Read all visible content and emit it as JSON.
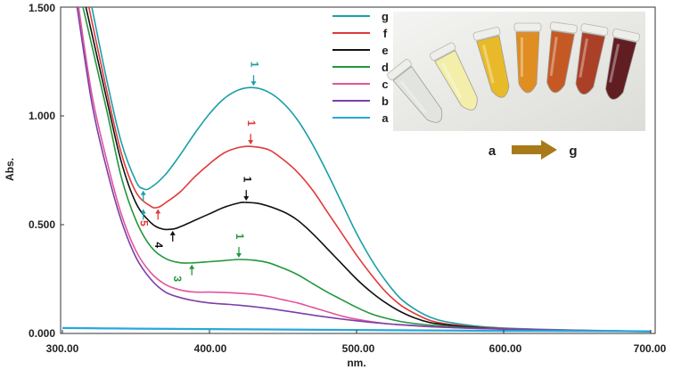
{
  "chart_data": {
    "type": "line",
    "title": "",
    "xlabel": "nm.",
    "ylabel": "Abs.",
    "xlim": [
      300,
      700
    ],
    "ylim": [
      0,
      1.5
    ],
    "x_ticks": [
      "300.00",
      "400.00",
      "500.00",
      "600.00",
      "700.00"
    ],
    "y_ticks": [
      "0.000",
      "0.500",
      "1.000",
      "1.500"
    ],
    "x_tick_values": [
      300,
      400,
      500,
      600,
      700
    ],
    "y_tick_values": [
      0,
      0.5,
      1.0,
      1.5
    ],
    "series": [
      {
        "name": "g",
        "color": "#1a9fa8",
        "points": [
          [
            320,
            1.5
          ],
          [
            330,
            1.17
          ],
          [
            340,
            0.88
          ],
          [
            350,
            0.7
          ],
          [
            355,
            0.665
          ],
          [
            360,
            0.67
          ],
          [
            370,
            0.73
          ],
          [
            380,
            0.82
          ],
          [
            390,
            0.92
          ],
          [
            400,
            1.01
          ],
          [
            410,
            1.08
          ],
          [
            420,
            1.12
          ],
          [
            430,
            1.13
          ],
          [
            440,
            1.11
          ],
          [
            450,
            1.06
          ],
          [
            460,
            0.98
          ],
          [
            470,
            0.87
          ],
          [
            480,
            0.74
          ],
          [
            490,
            0.6
          ],
          [
            500,
            0.46
          ],
          [
            510,
            0.34
          ],
          [
            520,
            0.24
          ],
          [
            530,
            0.16
          ],
          [
            540,
            0.11
          ],
          [
            550,
            0.075
          ],
          [
            560,
            0.055
          ],
          [
            580,
            0.035
          ],
          [
            600,
            0.025
          ],
          [
            620,
            0.02
          ],
          [
            650,
            0.015
          ],
          [
            700,
            0.01
          ]
        ]
      },
      {
        "name": "f",
        "color": "#e03a3a",
        "points": [
          [
            318,
            1.5
          ],
          [
            330,
            1.12
          ],
          [
            340,
            0.83
          ],
          [
            350,
            0.65
          ],
          [
            360,
            0.585
          ],
          [
            365,
            0.58
          ],
          [
            370,
            0.6
          ],
          [
            380,
            0.65
          ],
          [
            390,
            0.72
          ],
          [
            400,
            0.78
          ],
          [
            410,
            0.83
          ],
          [
            420,
            0.855
          ],
          [
            428,
            0.86
          ],
          [
            440,
            0.845
          ],
          [
            450,
            0.8
          ],
          [
            460,
            0.74
          ],
          [
            470,
            0.66
          ],
          [
            480,
            0.56
          ],
          [
            490,
            0.46
          ],
          [
            500,
            0.36
          ],
          [
            510,
            0.27
          ],
          [
            520,
            0.19
          ],
          [
            530,
            0.13
          ],
          [
            540,
            0.09
          ],
          [
            550,
            0.06
          ],
          [
            560,
            0.045
          ],
          [
            580,
            0.03
          ],
          [
            600,
            0.022
          ],
          [
            620,
            0.018
          ],
          [
            650,
            0.013
          ],
          [
            700,
            0.01
          ]
        ]
      },
      {
        "name": "e",
        "color": "#111111",
        "points": [
          [
            316,
            1.5
          ],
          [
            330,
            1.08
          ],
          [
            340,
            0.79
          ],
          [
            350,
            0.6
          ],
          [
            360,
            0.51
          ],
          [
            368,
            0.48
          ],
          [
            375,
            0.48
          ],
          [
            380,
            0.49
          ],
          [
            390,
            0.52
          ],
          [
            400,
            0.55
          ],
          [
            410,
            0.58
          ],
          [
            420,
            0.6
          ],
          [
            425,
            0.602
          ],
          [
            435,
            0.595
          ],
          [
            450,
            0.56
          ],
          [
            460,
            0.52
          ],
          [
            470,
            0.46
          ],
          [
            480,
            0.39
          ],
          [
            490,
            0.32
          ],
          [
            500,
            0.25
          ],
          [
            510,
            0.19
          ],
          [
            520,
            0.14
          ],
          [
            530,
            0.1
          ],
          [
            540,
            0.07
          ],
          [
            550,
            0.05
          ],
          [
            560,
            0.04
          ],
          [
            580,
            0.028
          ],
          [
            600,
            0.02
          ],
          [
            620,
            0.016
          ],
          [
            650,
            0.012
          ],
          [
            700,
            0.008
          ]
        ]
      },
      {
        "name": "d",
        "color": "#22963c",
        "points": [
          [
            314,
            1.5
          ],
          [
            330,
            1.03
          ],
          [
            340,
            0.72
          ],
          [
            350,
            0.52
          ],
          [
            360,
            0.4
          ],
          [
            370,
            0.345
          ],
          [
            380,
            0.325
          ],
          [
            390,
            0.325
          ],
          [
            400,
            0.33
          ],
          [
            410,
            0.335
          ],
          [
            420,
            0.34
          ],
          [
            430,
            0.337
          ],
          [
            440,
            0.325
          ],
          [
            450,
            0.3
          ],
          [
            460,
            0.27
          ],
          [
            470,
            0.23
          ],
          [
            480,
            0.19
          ],
          [
            490,
            0.155
          ],
          [
            500,
            0.12
          ],
          [
            510,
            0.09
          ],
          [
            520,
            0.07
          ],
          [
            530,
            0.055
          ],
          [
            540,
            0.045
          ],
          [
            560,
            0.033
          ],
          [
            580,
            0.025
          ],
          [
            600,
            0.02
          ],
          [
            650,
            0.013
          ],
          [
            700,
            0.008
          ]
        ]
      },
      {
        "name": "c",
        "color": "#e2559a",
        "points": [
          [
            311,
            1.5
          ],
          [
            320,
            1.1
          ],
          [
            330,
            0.8
          ],
          [
            340,
            0.55
          ],
          [
            350,
            0.38
          ],
          [
            360,
            0.28
          ],
          [
            370,
            0.225
          ],
          [
            380,
            0.2
          ],
          [
            390,
            0.19
          ],
          [
            400,
            0.19
          ],
          [
            410,
            0.188
          ],
          [
            420,
            0.185
          ],
          [
            430,
            0.18
          ],
          [
            440,
            0.17
          ],
          [
            450,
            0.155
          ],
          [
            460,
            0.14
          ],
          [
            470,
            0.12
          ],
          [
            480,
            0.1
          ],
          [
            490,
            0.08
          ],
          [
            500,
            0.065
          ],
          [
            520,
            0.045
          ],
          [
            540,
            0.035
          ],
          [
            560,
            0.028
          ],
          [
            600,
            0.02
          ],
          [
            650,
            0.014
          ],
          [
            700,
            0.01
          ]
        ]
      },
      {
        "name": "b",
        "color": "#7a3fa8",
        "points": [
          [
            310,
            1.5
          ],
          [
            320,
            1.06
          ],
          [
            330,
            0.76
          ],
          [
            340,
            0.52
          ],
          [
            350,
            0.35
          ],
          [
            360,
            0.25
          ],
          [
            370,
            0.19
          ],
          [
            380,
            0.165
          ],
          [
            390,
            0.15
          ],
          [
            400,
            0.14
          ],
          [
            420,
            0.13
          ],
          [
            440,
            0.115
          ],
          [
            460,
            0.095
          ],
          [
            480,
            0.075
          ],
          [
            500,
            0.058
          ],
          [
            520,
            0.045
          ],
          [
            540,
            0.036
          ],
          [
            560,
            0.029
          ],
          [
            600,
            0.02
          ],
          [
            650,
            0.014
          ],
          [
            700,
            0.01
          ]
        ]
      },
      {
        "name": "a",
        "color": "#2aa8d8",
        "points": [
          [
            300,
            0.025
          ],
          [
            350,
            0.022
          ],
          [
            400,
            0.02
          ],
          [
            450,
            0.018
          ],
          [
            500,
            0.016
          ],
          [
            550,
            0.014
          ],
          [
            600,
            0.012
          ],
          [
            650,
            0.011
          ],
          [
            700,
            0.01
          ]
        ]
      }
    ],
    "annotations": [
      {
        "text": "1",
        "x": 430,
        "y": 1.13,
        "color": "#1a9fa8"
      },
      {
        "text": "1",
        "x": 428,
        "y": 0.86,
        "color": "#e03a3a"
      },
      {
        "text": "1",
        "x": 425,
        "y": 0.602,
        "color": "#111111"
      },
      {
        "text": "1",
        "x": 420,
        "y": 0.34,
        "color": "#22963c"
      },
      {
        "text": "5",
        "x": 365,
        "y": 0.58,
        "color": "#e03a3a"
      },
      {
        "text": "4",
        "x": 375,
        "y": 0.48,
        "color": "#111111"
      },
      {
        "text": "3",
        "x": 388,
        "y": 0.325,
        "color": "#22963c"
      }
    ],
    "valley_arrows": [
      {
        "x": 355,
        "y": 0.665,
        "color": "#1a9fa8"
      },
      {
        "x": 355,
        "y": 0.58,
        "color": "#1a9fa8"
      }
    ]
  },
  "inset": {
    "from_label": "a",
    "to_label": "g",
    "arrow_color": "#a87a1a",
    "tube_colors": [
      "#e2e4e0",
      "#f4f0a8",
      "#e8b820",
      "#e08a18",
      "#c4521a",
      "#a8381e",
      "#5a1418"
    ]
  }
}
